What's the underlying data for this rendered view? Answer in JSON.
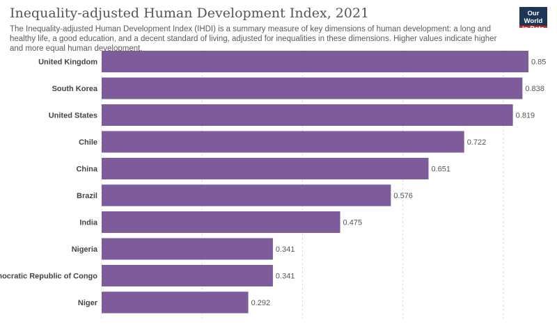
{
  "header": {
    "title": "Inequality-adjusted Human Development Index, 2021",
    "subtitle": "The Inequality-adjusted Human Development Index (IHDI) is a summary measure of key dimensions of human development: a long and healthy life, a good education, and a decent standard of living, adjusted for inequalities in these dimensions. Higher values indicate higher and more equal human development."
  },
  "logo": {
    "line1": "Our World",
    "line2": "in Data",
    "bg_color": "#1d3557",
    "accent_color": "#ce261e"
  },
  "chart_data": {
    "type": "bar",
    "orientation": "horizontal",
    "title": "Inequality-adjusted Human Development Index, 2021",
    "categories": [
      "United Kingdom",
      "South Korea",
      "United States",
      "Chile",
      "China",
      "Brazil",
      "India",
      "Nigeria",
      "Democratic Republic of Congo",
      "Niger"
    ],
    "values": [
      0.85,
      0.838,
      0.819,
      0.722,
      0.651,
      0.576,
      0.475,
      0.341,
      0.341,
      0.292
    ],
    "value_labels": [
      "0.85",
      "0.838",
      "0.819",
      "0.722",
      "0.651",
      "0.576",
      "0.475",
      "0.341",
      "0.341",
      "0.292"
    ],
    "xlim": [
      0,
      0.85
    ],
    "grid": true,
    "bar_color": "#7e5c9c"
  }
}
